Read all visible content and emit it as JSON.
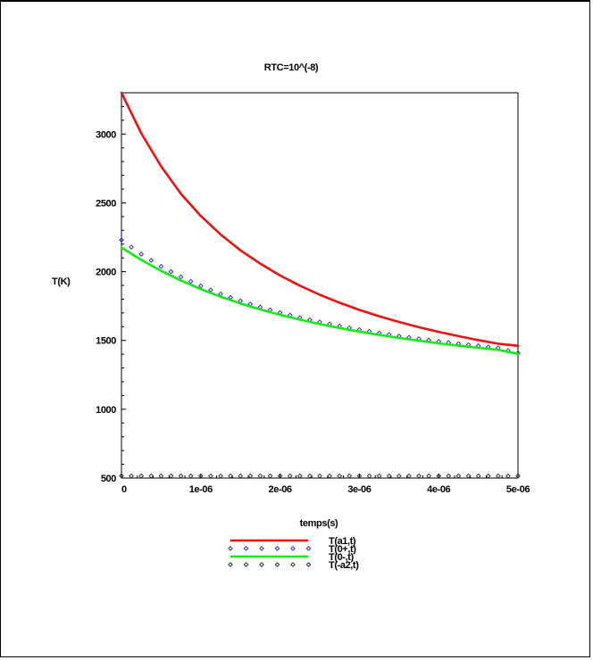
{
  "chart_data": {
    "type": "line",
    "title": "RTC=10^(-8)",
    "xlabel": "temps(s)",
    "ylabel": "T(K)",
    "xlim": [
      0,
      5e-06
    ],
    "ylim": [
      500,
      3300
    ],
    "x_ticks": [
      0,
      1e-06,
      2e-06,
      3e-06,
      4e-06,
      5e-06
    ],
    "x_tick_labels": [
      "0",
      "1e-06",
      "2e-06",
      "3e-06",
      "4e-06",
      "5e-06"
    ],
    "y_ticks": [
      500,
      1000,
      1500,
      2000,
      2500,
      3000
    ],
    "y_tick_labels": [
      "500",
      "1000",
      "1500",
      "2000",
      "2500",
      "3000"
    ],
    "grid": false,
    "legend_position": "bottom",
    "x": [
      0,
      2.5e-07,
      5e-07,
      7.5e-07,
      1e-06,
      1.25e-06,
      1.5e-06,
      1.75e-06,
      2e-06,
      2.25e-06,
      2.5e-06,
      2.75e-06,
      3e-06,
      3.25e-06,
      3.5e-06,
      3.75e-06,
      4e-06,
      4.25e-06,
      4.5e-06,
      4.75e-06,
      5e-06
    ],
    "series": [
      {
        "name": "T(a1,t)",
        "style": "line",
        "color": "#ee1111",
        "values": [
          3300,
          3005,
          2765,
          2565,
          2405,
          2270,
          2155,
          2058,
          1972,
          1898,
          1832,
          1774,
          1722,
          1676,
          1634,
          1596,
          1562,
          1531,
          1502,
          1476,
          1461
        ]
      },
      {
        "name": "T(0+,t)",
        "style": "points",
        "color": "#2222cc",
        "values": [
          2230,
          2127,
          2038,
          1962,
          1896,
          1838,
          1787,
          1742,
          1702,
          1666,
          1634,
          1605,
          1578,
          1554,
          1532,
          1512,
          1493,
          1476,
          1460,
          1446,
          1408
        ]
      },
      {
        "name": "T(0-,t)",
        "style": "line",
        "color": "#11ee11",
        "values": [
          2175,
          2085,
          2005,
          1935,
          1873,
          1818,
          1769,
          1725,
          1686,
          1651,
          1619,
          1590,
          1564,
          1540,
          1518,
          1498,
          1479,
          1462,
          1446,
          1432,
          1402
        ]
      },
      {
        "name": "T(-a2,t)",
        "style": "points",
        "color": "#222222",
        "values": [
          515,
          515,
          515,
          515,
          515,
          515,
          515,
          515,
          515,
          515,
          515,
          515,
          515,
          515,
          515,
          515,
          515,
          515,
          515,
          515,
          515
        ]
      }
    ]
  }
}
